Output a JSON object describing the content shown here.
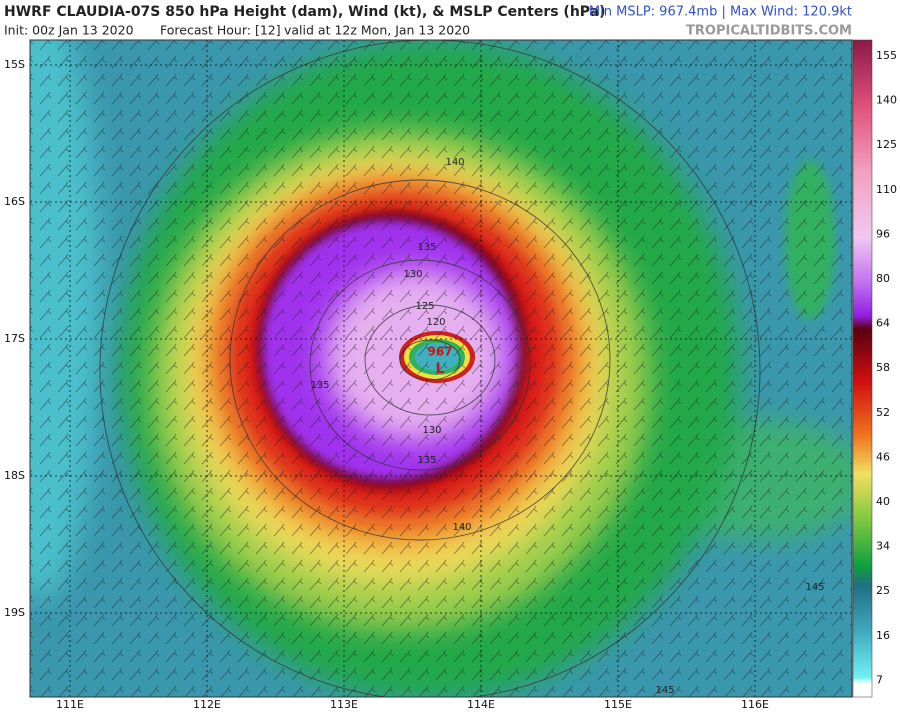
{
  "header": {
    "title": "HWRF CLAUDIA-07S 850 hPa Height (dam), Wind (kt), & MSLP Centers (hPa)",
    "init": "Init: 00z Jan 13 2020",
    "forecast_hour": "Forecast Hour: [12]",
    "valid": "valid at 12z Mon, Jan 13 2020",
    "stats": "Min MSLP: 967.4mb | Max Wind: 120.9kt",
    "credit": "TROPICALTIDBITS.COM"
  },
  "map": {
    "lat_labels": [
      "15S",
      "16S",
      "17S",
      "18S",
      "19S"
    ],
    "lon_labels": [
      "111E",
      "112E",
      "113E",
      "114E",
      "115E",
      "116E"
    ],
    "contour_labels": [
      "140",
      "135",
      "130",
      "125",
      "120",
      "135",
      "130",
      "135",
      "140",
      "145",
      "145"
    ],
    "center_pressure": "967",
    "center_marker": "L"
  },
  "colorbar": {
    "labels": [
      "155",
      "140",
      "125",
      "110",
      "96",
      "80",
      "64",
      "58",
      "52",
      "46",
      "40",
      "34",
      "25",
      "16",
      "7"
    ]
  }
}
